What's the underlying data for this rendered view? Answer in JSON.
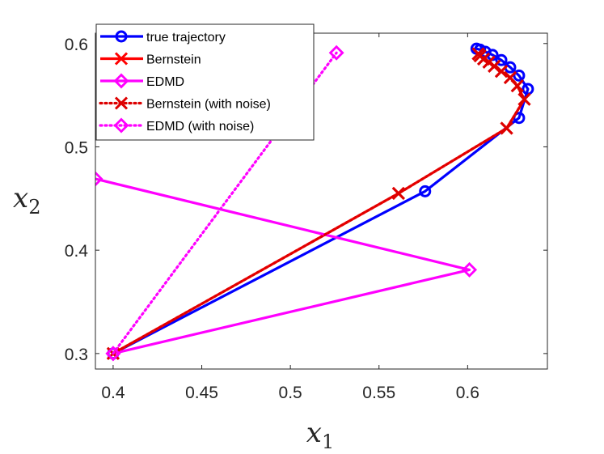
{
  "chart_data": {
    "type": "line",
    "title": "",
    "xlabel": "x",
    "xlabel_sub": "1",
    "ylabel": "x",
    "ylabel_sub": "2",
    "xlim": [
      0.39,
      0.645
    ],
    "ylim": [
      0.285,
      0.61
    ],
    "xticks": [
      0.4,
      0.45,
      0.5,
      0.55,
      0.6
    ],
    "xtick_labels": [
      "0.4",
      "0.45",
      "0.5",
      "0.55",
      "0.6"
    ],
    "yticks": [
      0.3,
      0.4,
      0.5,
      0.6
    ],
    "ytick_labels": [
      "0.3",
      "0.4",
      "0.5",
      "0.6"
    ],
    "grid": false,
    "legend_position": "top-left",
    "series": [
      {
        "name": "true trajectory",
        "color": "#0000ff",
        "line_style": "solid",
        "marker": "circle",
        "points": [
          [
            0.4,
            0.3
          ],
          [
            0.576,
            0.457
          ],
          [
            0.629,
            0.528
          ],
          [
            0.634,
            0.556
          ],
          [
            0.629,
            0.569
          ],
          [
            0.624,
            0.577
          ],
          [
            0.619,
            0.584
          ],
          [
            0.614,
            0.589
          ],
          [
            0.61,
            0.592
          ],
          [
            0.607,
            0.594
          ],
          [
            0.605,
            0.595
          ]
        ]
      },
      {
        "name": "Bernstein",
        "color": "#ff0000",
        "line_style": "solid",
        "marker": "x",
        "points": [
          [
            0.4,
            0.3
          ],
          [
            0.561,
            0.455
          ],
          [
            0.622,
            0.518
          ],
          [
            0.632,
            0.546
          ],
          [
            0.628,
            0.559
          ],
          [
            0.624,
            0.567
          ],
          [
            0.619,
            0.573
          ],
          [
            0.615,
            0.578
          ],
          [
            0.612,
            0.582
          ],
          [
            0.609,
            0.585
          ],
          [
            0.607,
            0.588
          ],
          [
            0.606,
            0.59
          ]
        ]
      },
      {
        "name": "EDMD",
        "color": "#ff00ff",
        "line_style": "solid",
        "marker": "diamond",
        "points": [
          [
            0.4,
            0.3
          ],
          [
            0.601,
            0.381
          ],
          [
            0.39,
            0.469
          ]
        ]
      },
      {
        "name": "Bernstein (with noise)",
        "color": "#dd0000",
        "line_style": "dotted",
        "marker": "x",
        "points": [
          [
            0.4,
            0.3
          ],
          [
            0.561,
            0.455
          ],
          [
            0.622,
            0.518
          ],
          [
            0.632,
            0.546
          ],
          [
            0.628,
            0.559
          ],
          [
            0.624,
            0.567
          ],
          [
            0.619,
            0.573
          ],
          [
            0.615,
            0.578
          ],
          [
            0.612,
            0.582
          ],
          [
            0.609,
            0.585
          ],
          [
            0.607,
            0.588
          ],
          [
            0.606,
            0.59
          ]
        ]
      },
      {
        "name": "EDMD (with noise)",
        "color": "#ff00ff",
        "line_style": "dotted",
        "marker": "diamond",
        "points": [
          [
            0.4,
            0.3
          ],
          [
            0.526,
            0.591
          ]
        ]
      }
    ]
  }
}
